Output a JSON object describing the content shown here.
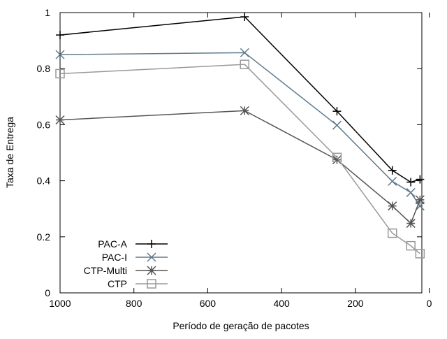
{
  "chart_data": {
    "type": "line",
    "xlabel": "Período de geração de pacotes",
    "ylabel": "Taxa de Entrega",
    "xlim": [
      1000,
      20
    ],
    "ylim": [
      0,
      1
    ],
    "x_reversed": true,
    "grid": false,
    "legend_position": "bottom-left",
    "x_ticks": [
      1000,
      800,
      600,
      400,
      200,
      0
    ],
    "x_tick_labels": [
      "1000",
      "800",
      "600",
      "400",
      "200",
      "0"
    ],
    "y_ticks": [
      0,
      0.2,
      0.4,
      0.6,
      0.8,
      1
    ],
    "y_tick_labels": [
      "0",
      "0.2",
      "0.4",
      "0.6",
      "0.8",
      "1"
    ],
    "series": [
      {
        "name": "PAC-A",
        "marker": "plus",
        "color": "#000000",
        "x": [
          1000,
          500,
          250,
          100,
          50,
          25
        ],
        "y": [
          0.92,
          0.985,
          0.648,
          0.437,
          0.395,
          0.405
        ]
      },
      {
        "name": "PAC-I",
        "marker": "cross",
        "color": "#5f7a8c",
        "x": [
          1000,
          500,
          250,
          100,
          50,
          25
        ],
        "y": [
          0.85,
          0.857,
          0.598,
          0.398,
          0.358,
          0.31
        ]
      },
      {
        "name": "CTP-Multi",
        "marker": "star",
        "color": "#555555",
        "x": [
          1000,
          500,
          250,
          100,
          50,
          25
        ],
        "y": [
          0.617,
          0.65,
          0.475,
          0.31,
          0.248,
          0.332
        ]
      },
      {
        "name": "CTP",
        "marker": "square",
        "color": "#999999",
        "x": [
          1000,
          500,
          250,
          100,
          50,
          25
        ],
        "y": [
          0.782,
          0.815,
          0.483,
          0.213,
          0.168,
          0.14
        ]
      }
    ]
  }
}
